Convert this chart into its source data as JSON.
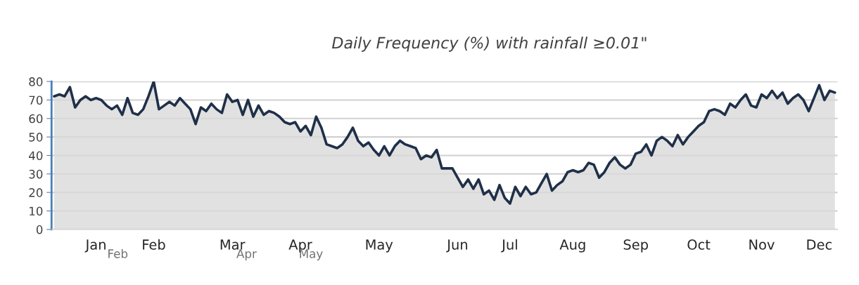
{
  "chart_data": {
    "type": "area",
    "title": "Daily Frequency (%) with rainfall ≥0.01\"",
    "categories": [
      null,
      null,
      null,
      null,
      null,
      null,
      null,
      null,
      "Jan",
      null,
      null,
      null,
      null,
      null,
      null,
      null,
      null,
      null,
      null,
      "Feb",
      null,
      null,
      null,
      null,
      null,
      null,
      null,
      null,
      null,
      null,
      null,
      null,
      null,
      null,
      "Mar",
      null,
      null,
      null,
      null,
      null,
      null,
      null,
      null,
      null,
      null,
      null,
      null,
      "Apr",
      null,
      null,
      null,
      null,
      null,
      null,
      null,
      null,
      null,
      null,
      null,
      null,
      null,
      null,
      "May",
      null,
      null,
      null,
      null,
      null,
      null,
      null,
      null,
      null,
      null,
      null,
      null,
      null,
      null,
      "Jun",
      null,
      null,
      null,
      null,
      null,
      null,
      null,
      null,
      null,
      "Jul",
      null,
      null,
      null,
      null,
      null,
      null,
      null,
      null,
      null,
      null,
      null,
      "Aug",
      null,
      null,
      null,
      null,
      null,
      null,
      null,
      null,
      null,
      null,
      null,
      "Sep",
      null,
      null,
      null,
      null,
      null,
      null,
      null,
      null,
      null,
      null,
      null,
      "Oct",
      null,
      null,
      null,
      null,
      null,
      null,
      null,
      null,
      null,
      null,
      null,
      "Nov",
      null,
      null,
      null,
      null,
      null,
      null,
      null,
      null,
      null,
      null,
      "Dec",
      null,
      null,
      null
    ],
    "series": [
      {
        "color": "#1f3048",
        "values": [
          72,
          73,
          72,
          77,
          66,
          70,
          72,
          70,
          71,
          70,
          67,
          65,
          67,
          62,
          71,
          63,
          62,
          65,
          72,
          80,
          65,
          67,
          69,
          67,
          71,
          68,
          65,
          57,
          66,
          64,
          68,
          65,
          63,
          73,
          69,
          70,
          62,
          70,
          61,
          67,
          62,
          64,
          63,
          61,
          58,
          57,
          58,
          53,
          56,
          51,
          61,
          55,
          46,
          45,
          44,
          46,
          50,
          55,
          48,
          45,
          47,
          43,
          40,
          45,
          40,
          45,
          48,
          46,
          45,
          44,
          38,
          40,
          39,
          43,
          33,
          33,
          33,
          28,
          23,
          27,
          22,
          27,
          19,
          21,
          16,
          24,
          17,
          14,
          23,
          18,
          23,
          19,
          20,
          25,
          30,
          21,
          24,
          26,
          31,
          32,
          31,
          32,
          36,
          35,
          28,
          31,
          36,
          39,
          35,
          33,
          35,
          41,
          42,
          46,
          40,
          48,
          50,
          48,
          45,
          51,
          46,
          50,
          53,
          56,
          58,
          64,
          65,
          64,
          62,
          68,
          66,
          70,
          73,
          67,
          66,
          73,
          71,
          75,
          71,
          74,
          68,
          71,
          73,
          70,
          64,
          71,
          78,
          70,
          75,
          74
        ]
      }
    ],
    "ylim": [
      0,
      80
    ],
    "yticks": [
      0,
      10,
      20,
      30,
      40,
      50,
      60,
      70,
      80
    ],
    "grid": "y",
    "legend": false,
    "annotations": [
      "Feb",
      "Apr",
      "May"
    ]
  }
}
